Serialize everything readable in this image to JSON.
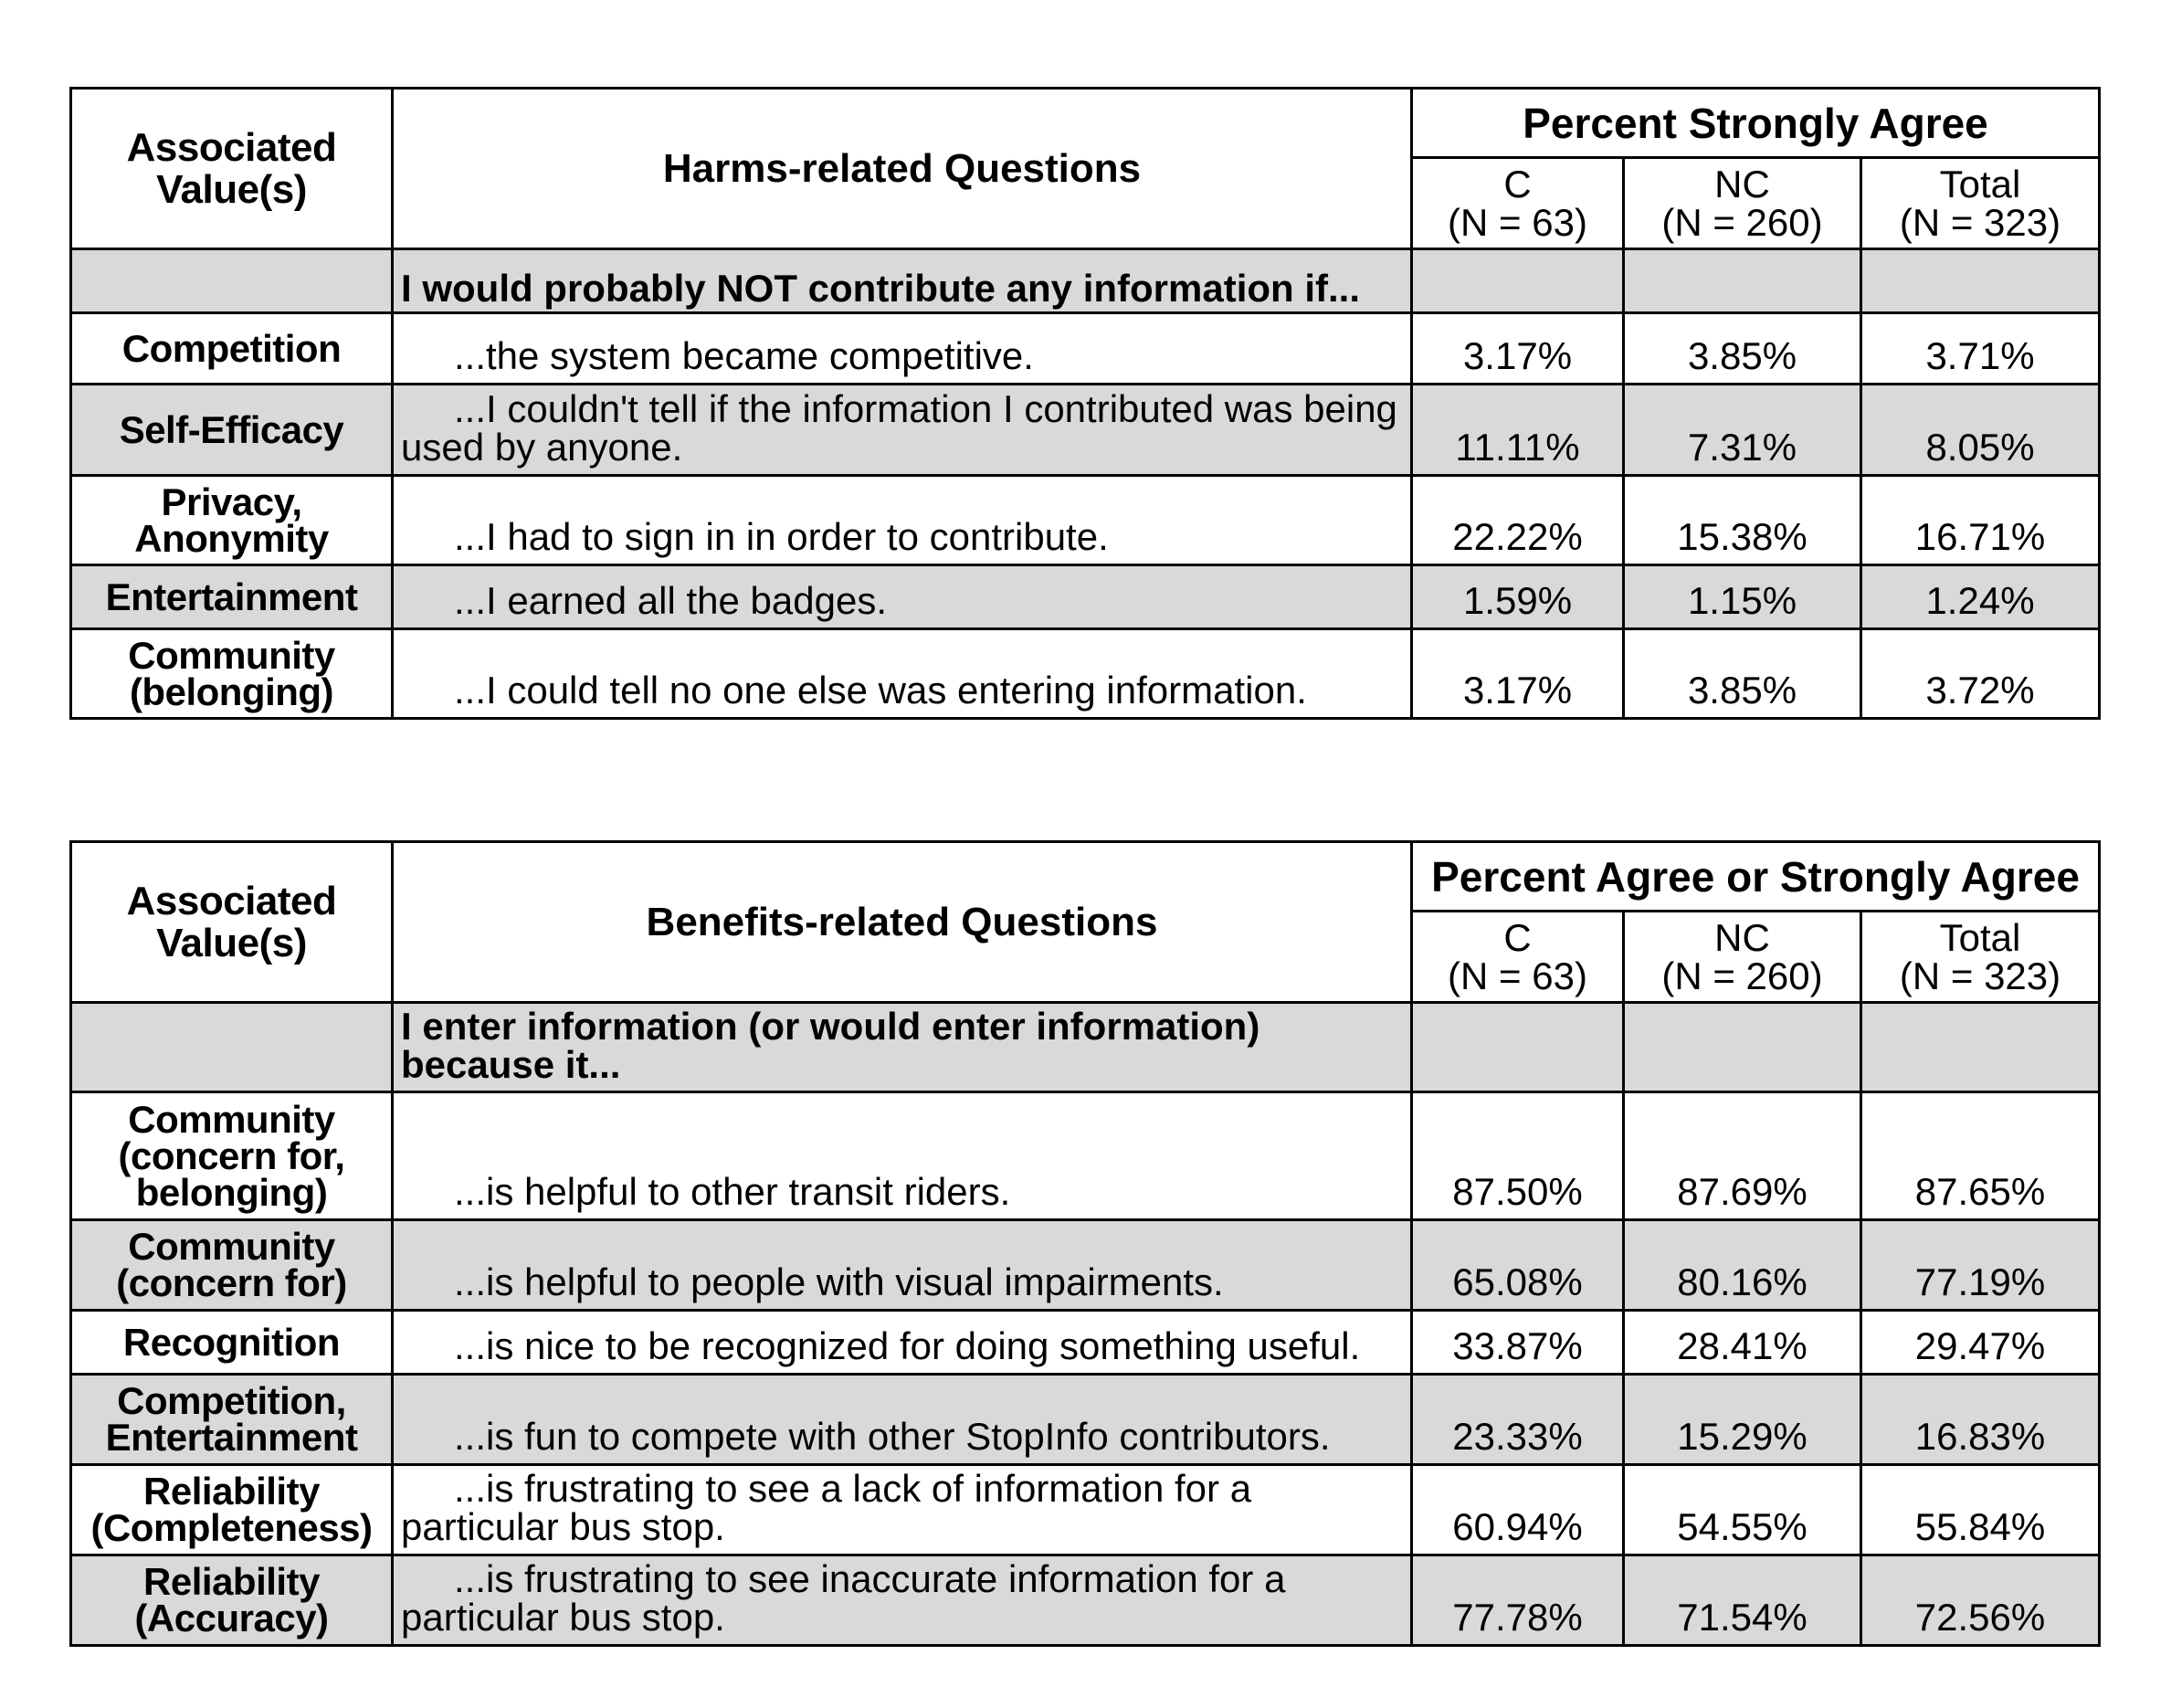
{
  "harms_table": {
    "value_header": "Associated Value(s)",
    "question_header": "Harms-related Questions",
    "percent_header": "Percent Strongly Agree",
    "col_headers": [
      {
        "group": "C",
        "n": "(N = 63)"
      },
      {
        "group": "NC",
        "n": "(N = 260)"
      },
      {
        "group": "Total",
        "n": "(N = 323)"
      }
    ],
    "intro": "I would probably NOT contribute any information if...",
    "rows": [
      {
        "value": "Competition",
        "question": "...the system became competitive.",
        "c": "3.17%",
        "nc": "3.85%",
        "total": "3.71%"
      },
      {
        "value": "Self-Efficacy",
        "question": "...I couldn't tell if the information I contributed was being used by anyone.",
        "c": "11.11%",
        "nc": "7.31%",
        "total": "8.05%"
      },
      {
        "value": "Privacy, Anonymity",
        "question": "...I had to sign in in order to contribute.",
        "c": "22.22%",
        "nc": "15.38%",
        "total": "16.71%"
      },
      {
        "value": "Entertainment",
        "question": "...I earned all the badges.",
        "c": "1.59%",
        "nc": "1.15%",
        "total": "1.24%"
      },
      {
        "value": "Community (belonging)",
        "question": "...I could tell no one else was entering information.",
        "c": "3.17%",
        "nc": "3.85%",
        "total": "3.72%"
      }
    ]
  },
  "benefits_table": {
    "value_header": "Associated Value(s)",
    "question_header": "Benefits-related Questions",
    "percent_header": "Percent Agree or Strongly Agree",
    "col_headers": [
      {
        "group": "C",
        "n": "(N = 63)"
      },
      {
        "group": "NC",
        "n": "(N = 260)"
      },
      {
        "group": "Total",
        "n": "(N = 323)"
      }
    ],
    "intro": "I enter information (or would enter information) because it...",
    "rows": [
      {
        "value": "Community (concern for, belonging)",
        "question": "...is helpful to other transit riders.",
        "c": "87.50%",
        "nc": "87.69%",
        "total": "87.65%"
      },
      {
        "value": "Community (concern for)",
        "question": "...is helpful to people with visual impairments.",
        "c": "65.08%",
        "nc": "80.16%",
        "total": "77.19%"
      },
      {
        "value": "Recognition",
        "question": "...is nice to be recognized for doing something useful.",
        "c": "33.87%",
        "nc": "28.41%",
        "total": "29.47%"
      },
      {
        "value": "Competition, Entertainment",
        "question": "...is fun to compete with other StopInfo contributors.",
        "c": "23.33%",
        "nc": "15.29%",
        "total": "16.83%"
      },
      {
        "value": "Reliability (Completeness)",
        "question": "...is frustrating to see a lack of information for a particular bus stop.",
        "c": "60.94%",
        "nc": "54.55%",
        "total": "55.84%"
      },
      {
        "value": "Reliability (Accuracy)",
        "question": "...is frustrating to see inaccurate information for a particular bus stop.",
        "c": "77.78%",
        "nc": "71.54%",
        "total": "72.56%"
      }
    ]
  }
}
